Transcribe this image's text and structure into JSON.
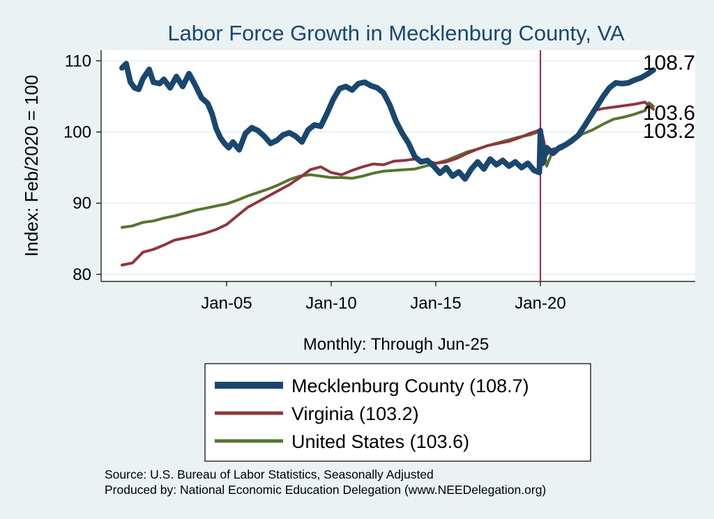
{
  "chart_data": {
    "type": "line",
    "title": "Labor Force Growth in Mecklenburg  County, VA",
    "ylabel": "Index: Feb/2020 = 100",
    "xlabel": "Monthly: Through Jun-25",
    "ylim": [
      79,
      111.5
    ],
    "xlim": [
      1999.0,
      2027.4
    ],
    "yticks": [
      80,
      90,
      100,
      110
    ],
    "xticks": [
      {
        "label": "Jan-05",
        "x": 2005.0
      },
      {
        "label": "Jan-10",
        "x": 2010.0
      },
      {
        "label": "Jan-15",
        "x": 2015.0
      },
      {
        "label": "Jan-20",
        "x": 2020.0
      }
    ],
    "grid": true,
    "vline": {
      "x": 2020.0,
      "color": "#b1223b"
    },
    "legend_position": "bottom",
    "end_labels": [
      {
        "series": "Mecklenburg  County",
        "text": "108.7"
      },
      {
        "series": "United States",
        "text": "103.6"
      },
      {
        "series": "Virginia",
        "text": "103.2"
      }
    ],
    "series": [
      {
        "name": "Mecklenburg  County",
        "legend": "Mecklenburg  County (108.7)",
        "color": "#1a476f",
        "width": 8,
        "points": [
          [
            2000.0,
            109.0
          ],
          [
            2000.2,
            109.6
          ],
          [
            2000.4,
            107.0
          ],
          [
            2000.6,
            106.2
          ],
          [
            2000.8,
            106.0
          ],
          [
            2001.0,
            107.5
          ],
          [
            2001.3,
            108.8
          ],
          [
            2001.5,
            107.0
          ],
          [
            2001.8,
            106.8
          ],
          [
            2002.0,
            107.4
          ],
          [
            2002.3,
            106.2
          ],
          [
            2002.6,
            107.8
          ],
          [
            2002.9,
            106.4
          ],
          [
            2003.2,
            108.2
          ],
          [
            2003.5,
            106.6
          ],
          [
            2003.8,
            104.8
          ],
          [
            2004.1,
            104.0
          ],
          [
            2004.3,
            102.6
          ],
          [
            2004.5,
            100.5
          ],
          [
            2004.7,
            99.2
          ],
          [
            2004.9,
            98.4
          ],
          [
            2005.1,
            97.8
          ],
          [
            2005.3,
            98.6
          ],
          [
            2005.6,
            97.5
          ],
          [
            2005.9,
            99.8
          ],
          [
            2006.2,
            100.6
          ],
          [
            2006.5,
            100.2
          ],
          [
            2006.8,
            99.4
          ],
          [
            2007.1,
            98.4
          ],
          [
            2007.4,
            98.8
          ],
          [
            2007.7,
            99.6
          ],
          [
            2008.0,
            99.9
          ],
          [
            2008.3,
            99.4
          ],
          [
            2008.6,
            98.6
          ],
          [
            2008.9,
            100.3
          ],
          [
            2009.2,
            101.0
          ],
          [
            2009.5,
            100.8
          ],
          [
            2009.8,
            102.6
          ],
          [
            2010.1,
            104.6
          ],
          [
            2010.4,
            106.1
          ],
          [
            2010.7,
            106.4
          ],
          [
            2011.0,
            105.9
          ],
          [
            2011.3,
            106.8
          ],
          [
            2011.6,
            107.0
          ],
          [
            2011.9,
            106.5
          ],
          [
            2012.2,
            106.2
          ],
          [
            2012.5,
            105.5
          ],
          [
            2012.8,
            103.8
          ],
          [
            2013.1,
            101.5
          ],
          [
            2013.4,
            99.8
          ],
          [
            2013.7,
            98.4
          ],
          [
            2014.0,
            96.5
          ],
          [
            2014.3,
            95.8
          ],
          [
            2014.6,
            96.0
          ],
          [
            2014.9,
            95.2
          ],
          [
            2015.2,
            94.2
          ],
          [
            2015.5,
            95.0
          ],
          [
            2015.8,
            93.8
          ],
          [
            2016.1,
            94.4
          ],
          [
            2016.4,
            93.4
          ],
          [
            2016.7,
            94.8
          ],
          [
            2017.0,
            95.8
          ],
          [
            2017.3,
            94.8
          ],
          [
            2017.6,
            96.2
          ],
          [
            2017.9,
            95.4
          ],
          [
            2018.2,
            96.0
          ],
          [
            2018.5,
            95.2
          ],
          [
            2018.8,
            95.8
          ],
          [
            2019.1,
            95.0
          ],
          [
            2019.4,
            95.6
          ],
          [
            2019.7,
            94.6
          ],
          [
            2019.95,
            94.3
          ],
          [
            2020.0,
            100.2
          ],
          [
            2020.1,
            95.6
          ],
          [
            2020.3,
            97.8
          ],
          [
            2020.6,
            97.0
          ],
          [
            2020.9,
            97.8
          ],
          [
            2021.2,
            98.2
          ],
          [
            2021.5,
            98.8
          ],
          [
            2021.8,
            99.5
          ],
          [
            2022.1,
            100.8
          ],
          [
            2022.4,
            102.2
          ],
          [
            2022.7,
            103.6
          ],
          [
            2023.0,
            105.0
          ],
          [
            2023.3,
            106.2
          ],
          [
            2023.6,
            106.9
          ],
          [
            2023.9,
            106.8
          ],
          [
            2024.2,
            106.9
          ],
          [
            2024.5,
            107.3
          ],
          [
            2024.8,
            107.6
          ],
          [
            2025.1,
            108.1
          ],
          [
            2025.4,
            108.7
          ]
        ]
      },
      {
        "name": "Virginia",
        "legend": "Virginia (103.2)",
        "color": "#90353b",
        "width": 4,
        "points": [
          [
            2000.0,
            81.3
          ],
          [
            2000.5,
            81.6
          ],
          [
            2001.0,
            83.1
          ],
          [
            2001.5,
            83.5
          ],
          [
            2002.0,
            84.1
          ],
          [
            2002.5,
            84.8
          ],
          [
            2003.0,
            85.1
          ],
          [
            2003.5,
            85.4
          ],
          [
            2004.0,
            85.8
          ],
          [
            2004.5,
            86.3
          ],
          [
            2005.0,
            87.0
          ],
          [
            2005.5,
            88.2
          ],
          [
            2006.0,
            89.4
          ],
          [
            2006.5,
            90.2
          ],
          [
            2007.0,
            91.0
          ],
          [
            2007.5,
            91.8
          ],
          [
            2008.0,
            92.6
          ],
          [
            2008.5,
            93.6
          ],
          [
            2009.0,
            94.7
          ],
          [
            2009.5,
            95.1
          ],
          [
            2010.0,
            94.3
          ],
          [
            2010.5,
            94.0
          ],
          [
            2011.0,
            94.6
          ],
          [
            2011.5,
            95.1
          ],
          [
            2012.0,
            95.5
          ],
          [
            2012.5,
            95.4
          ],
          [
            2013.0,
            95.9
          ],
          [
            2013.5,
            96.0
          ],
          [
            2014.0,
            96.2
          ],
          [
            2014.5,
            96.0
          ],
          [
            2015.0,
            95.6
          ],
          [
            2015.5,
            95.8
          ],
          [
            2016.0,
            96.3
          ],
          [
            2016.5,
            97.0
          ],
          [
            2017.0,
            97.6
          ],
          [
            2017.5,
            98.1
          ],
          [
            2018.0,
            98.4
          ],
          [
            2018.5,
            98.7
          ],
          [
            2019.0,
            99.2
          ],
          [
            2019.5,
            99.8
          ],
          [
            2019.9,
            100.2
          ],
          [
            2020.1,
            99.6
          ],
          [
            2020.3,
            96.8
          ],
          [
            2020.6,
            97.6
          ],
          [
            2021.0,
            97.8
          ],
          [
            2021.5,
            98.6
          ],
          [
            2022.0,
            100.5
          ],
          [
            2022.5,
            103.0
          ],
          [
            2023.0,
            103.3
          ],
          [
            2023.5,
            103.5
          ],
          [
            2024.0,
            103.7
          ],
          [
            2024.5,
            103.9
          ],
          [
            2025.0,
            104.2
          ],
          [
            2025.4,
            103.2
          ]
        ]
      },
      {
        "name": "United States",
        "legend": "United States (103.6)",
        "color": "#55752f",
        "width": 4,
        "points": [
          [
            2000.0,
            86.6
          ],
          [
            2000.5,
            86.8
          ],
          [
            2001.0,
            87.3
          ],
          [
            2001.5,
            87.5
          ],
          [
            2002.0,
            87.9
          ],
          [
            2002.5,
            88.2
          ],
          [
            2003.0,
            88.6
          ],
          [
            2003.5,
            89.0
          ],
          [
            2004.0,
            89.3
          ],
          [
            2004.5,
            89.6
          ],
          [
            2005.0,
            89.9
          ],
          [
            2005.5,
            90.4
          ],
          [
            2006.0,
            91.0
          ],
          [
            2006.5,
            91.5
          ],
          [
            2007.0,
            92.0
          ],
          [
            2007.5,
            92.6
          ],
          [
            2008.0,
            93.3
          ],
          [
            2008.5,
            93.8
          ],
          [
            2009.0,
            94.0
          ],
          [
            2009.5,
            93.8
          ],
          [
            2010.0,
            93.6
          ],
          [
            2010.5,
            93.6
          ],
          [
            2011.0,
            93.5
          ],
          [
            2011.5,
            93.8
          ],
          [
            2012.0,
            94.2
          ],
          [
            2012.5,
            94.5
          ],
          [
            2013.0,
            94.6
          ],
          [
            2013.5,
            94.7
          ],
          [
            2014.0,
            94.8
          ],
          [
            2014.5,
            95.2
          ],
          [
            2015.0,
            95.6
          ],
          [
            2015.5,
            96.0
          ],
          [
            2016.0,
            96.6
          ],
          [
            2016.5,
            97.2
          ],
          [
            2017.0,
            97.6
          ],
          [
            2017.5,
            98.1
          ],
          [
            2018.0,
            98.5
          ],
          [
            2018.5,
            98.9
          ],
          [
            2019.0,
            99.3
          ],
          [
            2019.5,
            99.6
          ],
          [
            2019.9,
            100.0
          ],
          [
            2020.1,
            99.0
          ],
          [
            2020.3,
            95.2
          ],
          [
            2020.6,
            97.4
          ],
          [
            2021.0,
            97.6
          ],
          [
            2021.5,
            98.5
          ],
          [
            2022.0,
            99.7
          ],
          [
            2022.5,
            100.3
          ],
          [
            2023.0,
            101.1
          ],
          [
            2023.5,
            101.8
          ],
          [
            2024.0,
            102.1
          ],
          [
            2024.5,
            102.5
          ],
          [
            2025.0,
            103.0
          ],
          [
            2025.2,
            104.1
          ],
          [
            2025.4,
            103.6
          ]
        ]
      }
    ]
  },
  "footer": {
    "source": "Source: U.S. Bureau of Labor Statistics, Seasonally Adjusted",
    "produced": "Produced by: National Economic Education Delegation (www.NEEDelegation.org)"
  }
}
